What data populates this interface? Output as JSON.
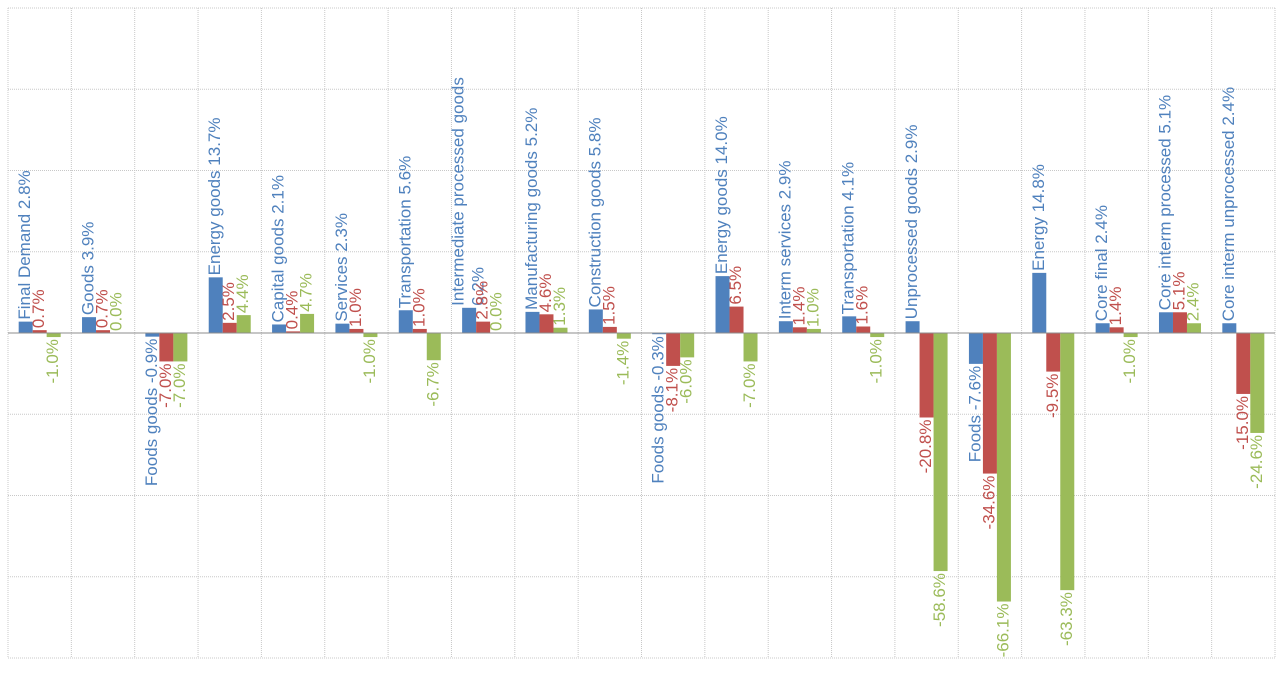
{
  "chart_data": {
    "type": "bar",
    "orientation": "vertical",
    "categories": [
      "Final Demand 2.8%",
      "Goods 3.9%",
      "Foods goods -0.9%",
      "Energy goods 13.7%",
      "Capital goods 2.1%",
      "Services 2.3%",
      "Transportation 5.6%",
      "Intermediate processed goods 6.2%",
      "Manufacturing goods 5.2%",
      "Construction goods 5.8%",
      "Foods goods -0.3%",
      "Energy goods 14.0%",
      "Interm services 2.9%",
      "Transportation 4.1%",
      "Unprocessed goods 2.9%",
      "Foods -7.6%",
      "Energy 14.8%",
      "Core final 2.4%",
      "Core interm processed 5.1%",
      "Core interm unprocessed 2.4%"
    ],
    "series": [
      {
        "color": "#4F81BD",
        "values": [
          2.8,
          3.9,
          -0.9,
          13.7,
          2.1,
          2.3,
          5.6,
          6.2,
          5.2,
          5.8,
          -0.3,
          14.0,
          2.9,
          4.1,
          2.9,
          -7.6,
          14.8,
          2.4,
          5.1,
          2.4
        ]
      },
      {
        "color": "#C0504D",
        "values": [
          0.7,
          0.7,
          -7.0,
          2.5,
          0.4,
          1.0,
          1.0,
          2.8,
          4.6,
          1.5,
          -8.1,
          6.5,
          1.4,
          1.6,
          -20.8,
          -34.6,
          -9.5,
          1.4,
          5.1,
          -15.0
        ],
        "labels": [
          "0.7%",
          "0.7%",
          "-7.0%",
          "2.5%",
          "0.4%",
          "1.0%",
          "1.0%",
          "2.8%",
          "4.6%",
          "1.5%",
          "-8.1%",
          "6.5%",
          "1.4%",
          "1.6%",
          "-20.8%",
          "-34.6%",
          "-9.5%",
          "1.4%",
          "5.1%",
          "-15.0%"
        ]
      },
      {
        "color": "#9BBB59",
        "values": [
          -1.0,
          0.0,
          -7.0,
          4.4,
          4.7,
          -1.0,
          -6.7,
          0.0,
          1.3,
          -1.4,
          -6.0,
          -7.0,
          1.0,
          -1.0,
          -58.6,
          -66.1,
          -63.3,
          -1.0,
          2.4,
          -24.6
        ],
        "labels": [
          "-1.0%",
          "0.0%",
          "-7.0%",
          "4.4%",
          "4.7%",
          "-1.0%",
          "-6.7%",
          "0.0%",
          "1.3%",
          "-1.4%",
          "-6.0%",
          "-7.0%",
          "1.0%",
          "-1.0%",
          "-58.6%",
          "-66.1%",
          "-63.3%",
          "-1.0%",
          "2.4%",
          "-24.6%"
        ]
      }
    ],
    "ylim": [
      -80,
      80
    ],
    "grid": true,
    "legend": "none",
    "title": "",
    "xlabel": "",
    "ylabel": ""
  }
}
